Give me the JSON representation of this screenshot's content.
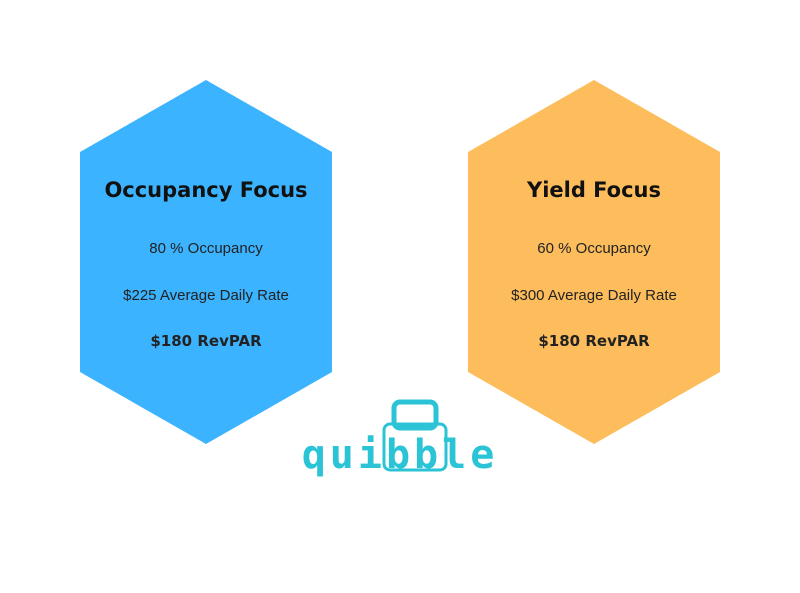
{
  "panels": [
    {
      "title": "Occupancy Focus",
      "lines": [
        "80 % Occupancy",
        "$225 Average Daily Rate",
        "$180 RevPAR"
      ]
    },
    {
      "title": "Yield Focus",
      "lines": [
        "60 % Occupancy",
        "$300 Average Daily Rate",
        "$180 RevPAR"
      ]
    }
  ],
  "logo": "quibble"
}
